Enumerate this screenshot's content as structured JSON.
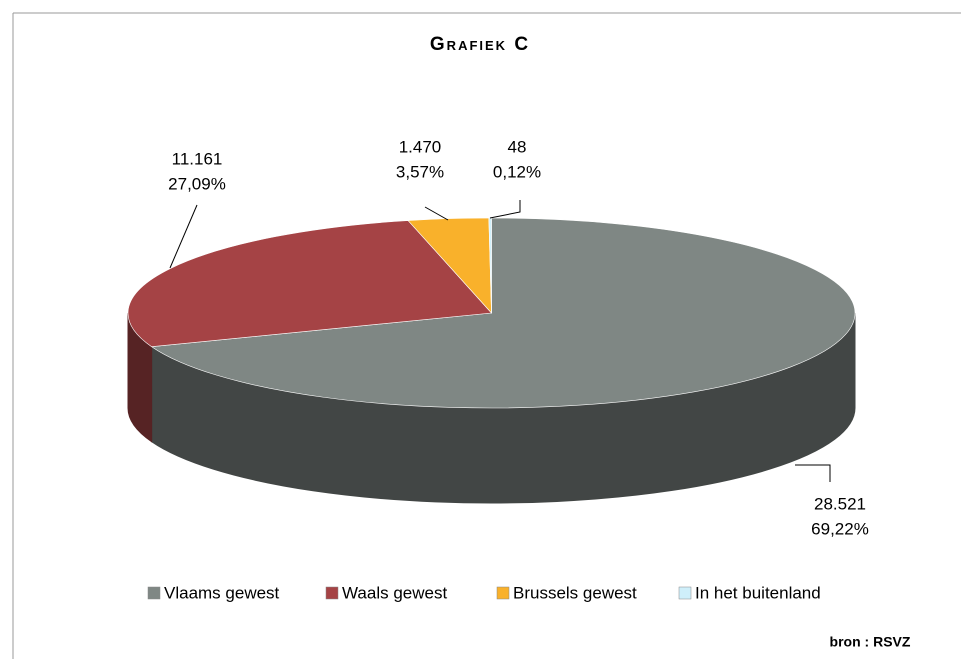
{
  "chart_data": {
    "type": "pie",
    "title": "Grafiek C",
    "source": "bron : RSVZ",
    "categories": [
      "Vlaams gewest",
      "Waals gewest",
      "Brussels gewest",
      "In het buitenland"
    ],
    "values": [
      28521,
      11161,
      1470,
      48
    ],
    "value_labels": [
      "28.521",
      "11.161",
      "1.470",
      "48"
    ],
    "percentages": [
      69.22,
      27.09,
      3.57,
      0.12
    ],
    "percentage_labels": [
      "69,22%",
      "27,09%",
      "3,57%",
      "0,12%"
    ],
    "colors": [
      "#7f8784",
      "#a54345",
      "#f9b12b",
      "#cfeffa"
    ],
    "legend": "bottom"
  }
}
